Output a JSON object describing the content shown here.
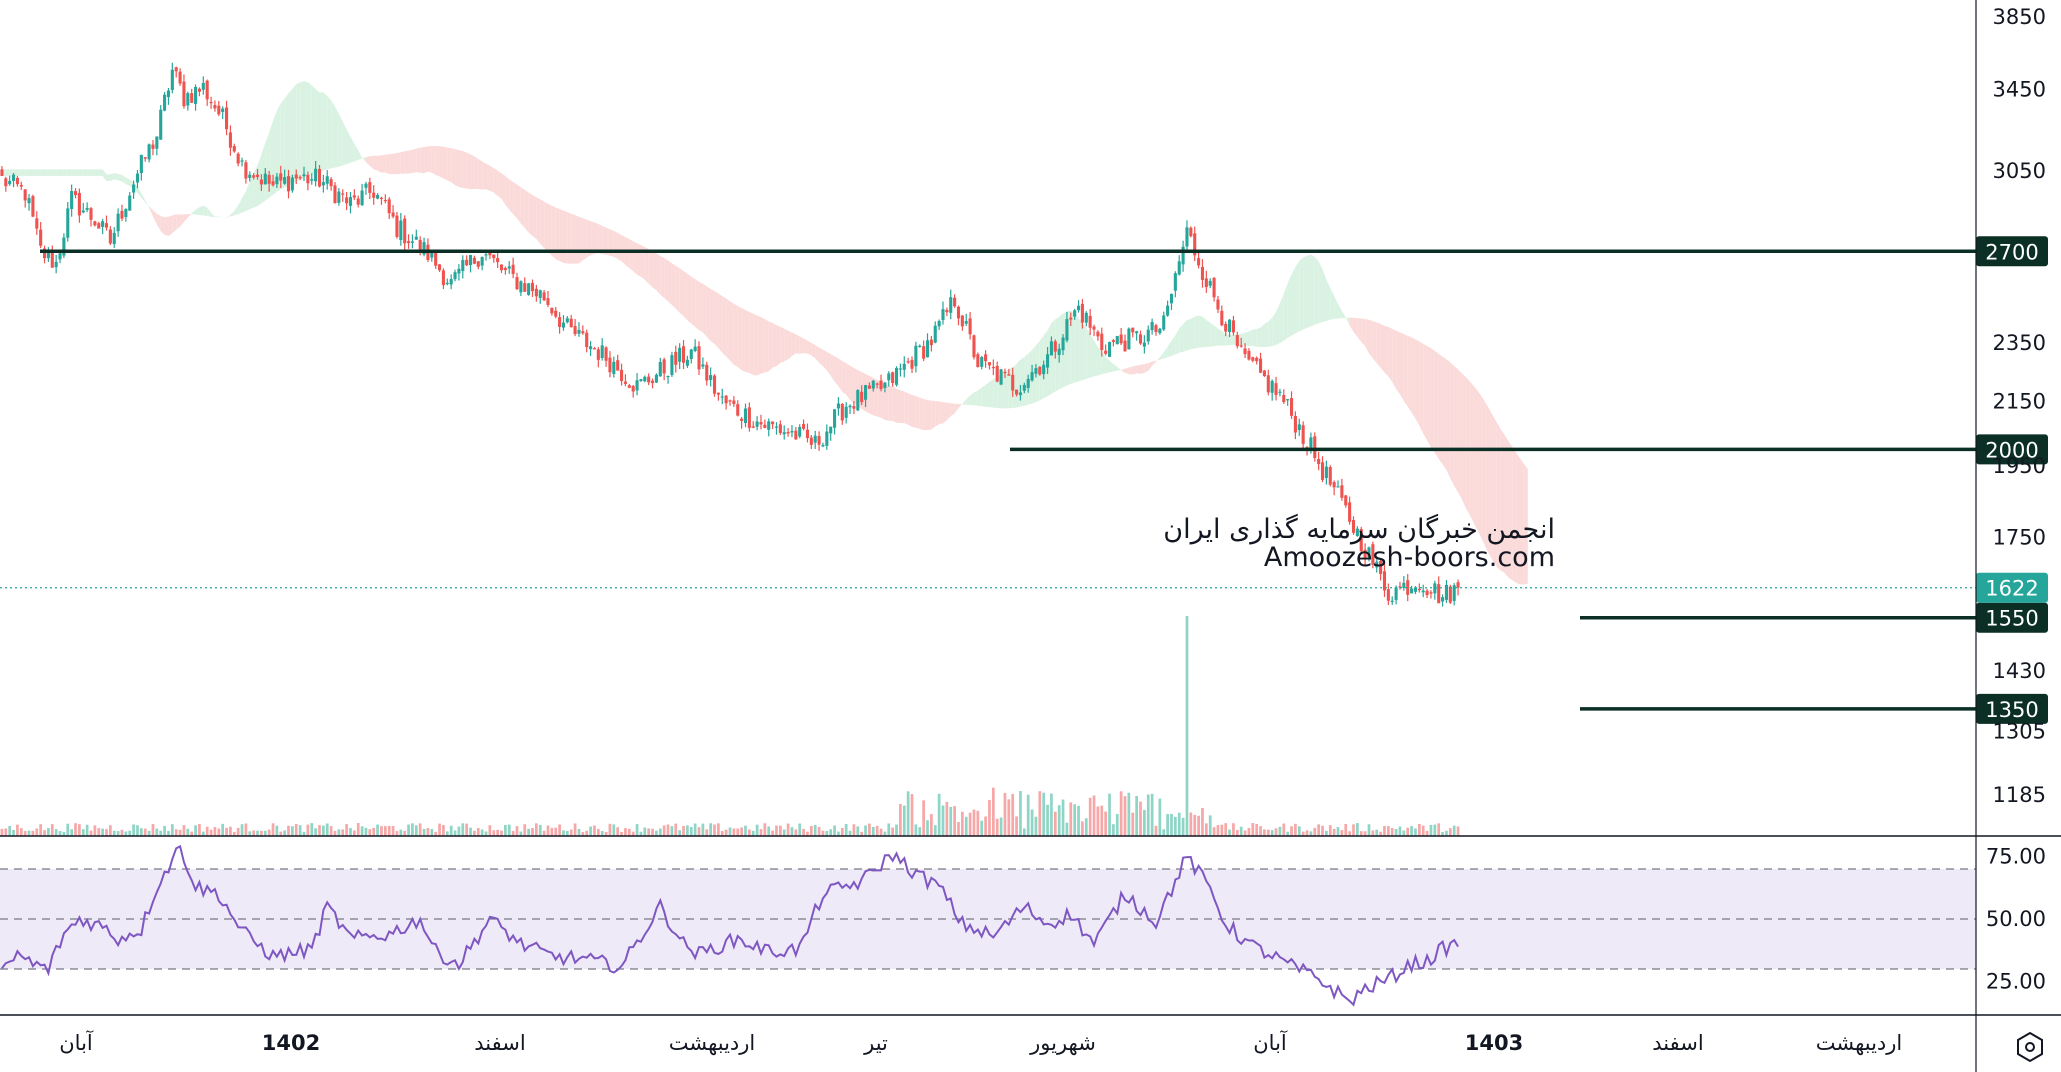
{
  "chart_data": {
    "type": "candlestick",
    "price_axis": {
      "ticks": [
        3850,
        3450,
        3050,
        2350,
        2150,
        1950,
        1750,
        1430,
        1305,
        1185
      ],
      "scale": "log"
    },
    "rsi_axis": {
      "ticks": [
        "75.00",
        "50.00",
        "25.00"
      ],
      "upper": 70,
      "middle": 50,
      "lower": 30
    },
    "time_axis": {
      "labels": [
        {
          "text": "آبان",
          "bold": false
        },
        {
          "text": "1402",
          "bold": true
        },
        {
          "text": "اسفند",
          "bold": false
        },
        {
          "text": "اردیبهشت",
          "bold": false
        },
        {
          "text": "تیر",
          "bold": false
        },
        {
          "text": "شهریور",
          "bold": false
        },
        {
          "text": "آبان",
          "bold": false
        },
        {
          "text": "1403",
          "bold": true
        },
        {
          "text": "اسفند",
          "bold": false
        },
        {
          "text": "اردیبهشت",
          "bold": false
        }
      ]
    },
    "levels": [
      {
        "value": 2700,
        "label": "2700"
      },
      {
        "value": 2000,
        "label": "2000"
      },
      {
        "value": 1550,
        "label": "1550"
      },
      {
        "value": 1350,
        "label": "1350"
      }
    ],
    "last_price": {
      "value": 1622,
      "label": "1622"
    },
    "price_path": [
      [
        0,
        3010
      ],
      [
        6,
        2950
      ],
      [
        10,
        2700
      ],
      [
        14,
        2650
      ],
      [
        18,
        2920
      ],
      [
        24,
        2830
      ],
      [
        28,
        2740
      ],
      [
        34,
        3000
      ],
      [
        40,
        3220
      ],
      [
        44,
        3550
      ],
      [
        47,
        3410
      ],
      [
        52,
        3460
      ],
      [
        57,
        3300
      ],
      [
        62,
        3080
      ],
      [
        70,
        2980
      ],
      [
        76,
        3020
      ],
      [
        82,
        3010
      ],
      [
        90,
        2900
      ],
      [
        96,
        2960
      ],
      [
        102,
        2800
      ],
      [
        110,
        2690
      ],
      [
        116,
        2570
      ],
      [
        124,
        2700
      ],
      [
        130,
        2610
      ],
      [
        140,
        2520
      ],
      [
        146,
        2400
      ],
      [
        156,
        2300
      ],
      [
        164,
        2200
      ],
      [
        170,
        2250
      ],
      [
        178,
        2320
      ],
      [
        186,
        2150
      ],
      [
        196,
        2080
      ],
      [
        204,
        2050
      ],
      [
        210,
        2015
      ],
      [
        218,
        2140
      ],
      [
        228,
        2200
      ],
      [
        240,
        2360
      ],
      [
        246,
        2510
      ],
      [
        252,
        2280
      ],
      [
        262,
        2200
      ],
      [
        270,
        2300
      ],
      [
        278,
        2480
      ],
      [
        284,
        2340
      ],
      [
        294,
        2370
      ],
      [
        300,
        2410
      ],
      [
        306,
        2780
      ],
      [
        312,
        2550
      ],
      [
        320,
        2300
      ],
      [
        330,
        2170
      ],
      [
        340,
        1960
      ],
      [
        350,
        1760
      ],
      [
        358,
        1610
      ],
      [
        366,
        1640
      ],
      [
        372,
        1600
      ],
      [
        376,
        1622
      ]
    ],
    "volume_spike_index": 306,
    "rsi_path": [
      [
        0,
        28
      ],
      [
        4,
        36
      ],
      [
        8,
        32
      ],
      [
        12,
        30
      ],
      [
        16,
        44
      ],
      [
        20,
        50
      ],
      [
        26,
        47
      ],
      [
        30,
        42
      ],
      [
        36,
        46
      ],
      [
        40,
        63
      ],
      [
        46,
        79
      ],
      [
        50,
        63
      ],
      [
        56,
        60
      ],
      [
        62,
        45
      ],
      [
        70,
        35
      ],
      [
        80,
        38
      ],
      [
        84,
        55
      ],
      [
        90,
        42
      ],
      [
        100,
        44
      ],
      [
        108,
        50
      ],
      [
        112,
        37
      ],
      [
        118,
        32
      ],
      [
        126,
        50
      ],
      [
        134,
        40
      ],
      [
        142,
        35
      ],
      [
        150,
        34
      ],
      [
        160,
        31
      ],
      [
        170,
        55
      ],
      [
        176,
        40
      ],
      [
        180,
        36
      ],
      [
        190,
        42
      ],
      [
        198,
        37
      ],
      [
        206,
        38
      ],
      [
        212,
        60
      ],
      [
        222,
        65
      ],
      [
        230,
        76
      ],
      [
        236,
        68
      ],
      [
        242,
        63
      ],
      [
        248,
        48
      ],
      [
        256,
        43
      ],
      [
        264,
        55
      ],
      [
        270,
        48
      ],
      [
        276,
        52
      ],
      [
        282,
        40
      ],
      [
        290,
        60
      ],
      [
        298,
        49
      ],
      [
        306,
        75
      ],
      [
        312,
        62
      ],
      [
        316,
        48
      ],
      [
        322,
        40
      ],
      [
        332,
        32
      ],
      [
        340,
        26
      ],
      [
        348,
        17
      ],
      [
        352,
        22
      ],
      [
        358,
        26
      ],
      [
        364,
        32
      ],
      [
        368,
        33
      ],
      [
        372,
        38
      ],
      [
        376,
        40
      ]
    ],
    "colors": {
      "up": "#26a69a",
      "down": "#ef5350",
      "level_line": "#0b2f24",
      "rsi_line": "#7e57c2",
      "rsi_band": "#efeaf8",
      "cloud_bull": "#d9f2e2",
      "cloud_bear": "#fbdada",
      "last_price": "#26a69a"
    }
  },
  "watermark": {
    "line1": "انجمن خبرگان سرمایه گذاری ایران",
    "line2": "Amoozesh-boors.com"
  },
  "corner_icon": "hexagon-settings-icon"
}
